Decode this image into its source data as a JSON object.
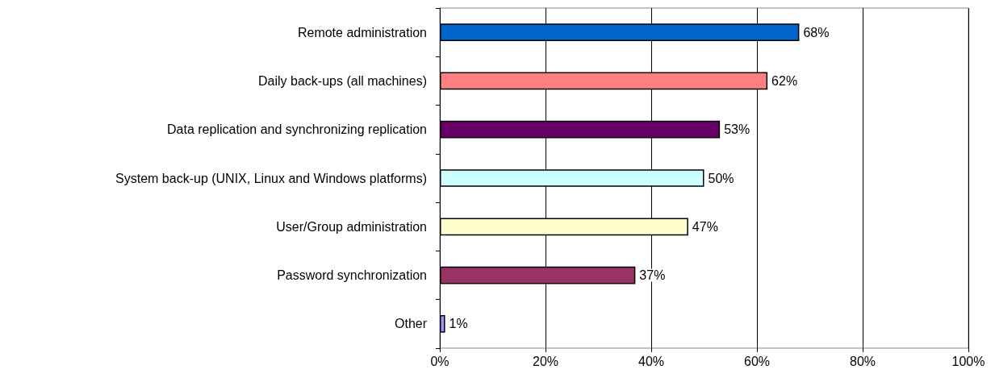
{
  "chart_data": {
    "type": "bar",
    "orientation": "horizontal",
    "categories": [
      "Remote administration",
      "Daily back-ups (all machines)",
      "Data replication and synchronizing replication",
      "System back-up (UNIX, Linux and Windows platforms)",
      "User/Group administration",
      "Password synchronization",
      "Other"
    ],
    "values": [
      68,
      62,
      53,
      50,
      47,
      37,
      1
    ],
    "value_labels": [
      "68%",
      "62%",
      "53%",
      "50%",
      "47%",
      "37%",
      "1%"
    ],
    "colors": [
      "#0066cc",
      "#ff8080",
      "#660066",
      "#ccffff",
      "#ffffcc",
      "#993366",
      "#9999ff"
    ],
    "xlim": [
      0,
      100
    ],
    "xticks": [
      {
        "value": 0,
        "label": "0%"
      },
      {
        "value": 20,
        "label": "20%"
      },
      {
        "value": 40,
        "label": "40%"
      },
      {
        "value": 60,
        "label": "60%"
      },
      {
        "value": 80,
        "label": "80%"
      },
      {
        "value": 100,
        "label": "100%"
      }
    ],
    "grid": "x"
  }
}
